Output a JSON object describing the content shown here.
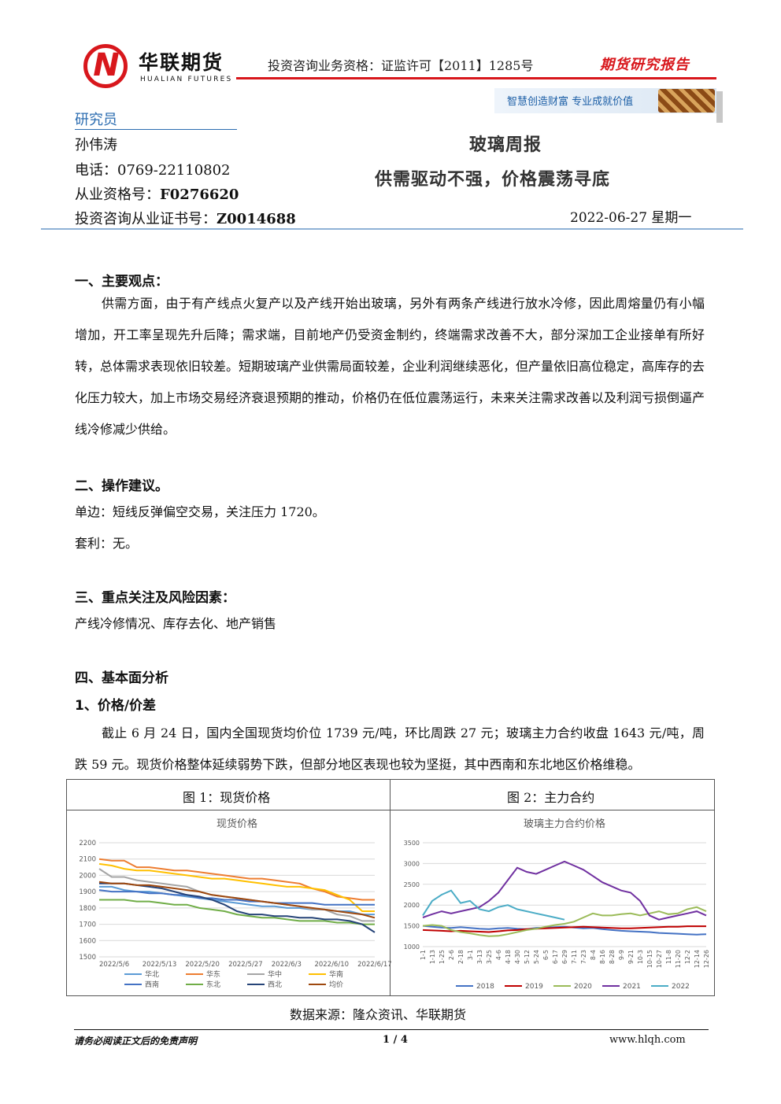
{
  "header": {
    "logo_cn": "华联期货",
    "logo_en": "HUALIAN FUTURES",
    "qualification": "投资咨询业务资格：证监许可【2011】1285号",
    "report_type": "期货研究报告",
    "slogan": "智慧创造财富  专业成就价值",
    "brand_color": "#d8171c"
  },
  "researcher": {
    "section_title": "研究员",
    "name": "孙伟涛",
    "phone_label": "电话：",
    "phone": "0769-22110802",
    "license_label": "从业资格号：",
    "license": "F0276620",
    "advisory_label": "投资咨询从业证书号：",
    "advisory": "Z0014688"
  },
  "title": {
    "main": "玻璃周报",
    "sub": "供需驱动不强，价格震荡寻底",
    "date": "2022-06-27  星期一"
  },
  "sections": {
    "s1_title": "一、主要观点：",
    "s1_body": "供需方面，由于有产线点火复产以及产线开始出玻璃，另外有两条产线进行放水冷修，因此周熔量仍有小幅增加，开工率呈现先升后降；需求端，目前地产仍受资金制约，终端需求改善不大，部分深加工企业接单有所好转，总体需求表现依旧较差。短期玻璃产业供需局面较差，企业利润继续恶化，但产量依旧高位稳定，高库存的去化压力较大，加上市场交易经济衰退预期的推动，价格仍在低位震荡运行，未来关注需求改善以及利润亏损倒逼产线冷修减少供给。",
    "s2_title": "二、操作建议。",
    "s2_line1": "单边：短线反弹偏空交易，关注压力 1720。",
    "s2_line2": "套利：无。",
    "s3_title": "三、重点关注及风险因素：",
    "s3_body": "产线冷修情况、库存去化、地产销售",
    "s4_title": "四、基本面分析",
    "s4_sub": "1、价格/价差",
    "s4_body": "截止 6 月 24 日，国内全国现货均价位 1739 元/吨，环比周跌 27 元；玻璃主力合约收盘 1643 元/吨，周跌 59 元。现货价格整体延续弱势下跌，但部分地区表现也较为坚挺，其中西南和东北地区价格维稳。"
  },
  "figures": {
    "fig1_caption": "图 1：现货价格",
    "fig2_caption": "图 2：主力合约",
    "source": "数据来源：隆众资讯、华联期货"
  },
  "chart_data": [
    {
      "type": "line",
      "title": "现货价格",
      "x_ticks": [
        "2022/5/6",
        "2022/5/13",
        "2022/5/20",
        "2022/5/27",
        "2022/6/3",
        "2022/6/10",
        "2022/6/17"
      ],
      "y_ticks": [
        1500,
        1600,
        1700,
        1800,
        1900,
        2000,
        2100,
        2200
      ],
      "ylim": [
        1500,
        2200
      ],
      "legend_position": "bottom",
      "series": [
        {
          "name": "华北",
          "color": "#5b9bd5",
          "values": [
            1930,
            1930,
            1910,
            1900,
            1900,
            1890,
            1880,
            1870,
            1860,
            1850,
            1840,
            1830,
            1820,
            1810,
            1810,
            1800,
            1800,
            1790,
            1790,
            1780,
            1780,
            1760,
            1760
          ]
        },
        {
          "name": "华东",
          "color": "#ed7d31",
          "values": [
            2100,
            2090,
            2090,
            2050,
            2050,
            2040,
            2030,
            2030,
            2020,
            2010,
            2000,
            1990,
            1980,
            1980,
            1970,
            1960,
            1950,
            1920,
            1900,
            1870,
            1860,
            1850,
            1850
          ]
        },
        {
          "name": "华中",
          "color": "#a5a5a5",
          "values": [
            2040,
            1990,
            1990,
            1970,
            1960,
            1950,
            1940,
            1930,
            1900,
            1880,
            1870,
            1860,
            1850,
            1840,
            1830,
            1820,
            1810,
            1790,
            1790,
            1760,
            1750,
            1720,
            1720
          ]
        },
        {
          "name": "华南",
          "color": "#ffc000",
          "values": [
            2070,
            2060,
            2040,
            2030,
            2030,
            2020,
            2010,
            2000,
            1990,
            1980,
            1980,
            1970,
            1960,
            1950,
            1940,
            1930,
            1930,
            1920,
            1910,
            1880,
            1850,
            1780,
            1780
          ]
        },
        {
          "name": "西南",
          "color": "#4472c4",
          "values": [
            1910,
            1900,
            1900,
            1900,
            1890,
            1890,
            1880,
            1880,
            1860,
            1860,
            1850,
            1850,
            1840,
            1840,
            1830,
            1830,
            1830,
            1830,
            1820,
            1820,
            1820,
            1820,
            1820
          ]
        },
        {
          "name": "东北",
          "color": "#70ad47",
          "values": [
            1850,
            1850,
            1850,
            1840,
            1840,
            1830,
            1820,
            1820,
            1800,
            1790,
            1780,
            1760,
            1750,
            1740,
            1740,
            1730,
            1720,
            1720,
            1720,
            1710,
            1710,
            1700,
            1700
          ]
        },
        {
          "name": "西北",
          "color": "#264478",
          "values": [
            1950,
            1950,
            1950,
            1940,
            1930,
            1920,
            1900,
            1880,
            1870,
            1850,
            1820,
            1780,
            1760,
            1760,
            1750,
            1750,
            1740,
            1740,
            1730,
            1730,
            1720,
            1700,
            1650
          ]
        },
        {
          "name": "均价",
          "color": "#9e480e",
          "values": [
            1960,
            1950,
            1950,
            1940,
            1940,
            1930,
            1920,
            1910,
            1900,
            1880,
            1870,
            1860,
            1850,
            1840,
            1830,
            1820,
            1810,
            1800,
            1790,
            1780,
            1770,
            1760,
            1740
          ]
        }
      ]
    },
    {
      "type": "line",
      "title": "玻璃主力合约价格",
      "x_ticks": [
        "1-1",
        "1-13",
        "1-25",
        "2-6",
        "2-18",
        "3-1",
        "3-13",
        "3-25",
        "4-6",
        "4-18",
        "4-30",
        "5-12",
        "5-24",
        "6-5",
        "6-17",
        "6-29",
        "7-11",
        "7-23",
        "8-4",
        "8-16",
        "8-28",
        "9-9",
        "9-21",
        "10-3",
        "10-15",
        "10-27",
        "11-8",
        "11-20",
        "12-2",
        "12-14",
        "12-26"
      ],
      "y_ticks": [
        1000,
        1500,
        2000,
        2500,
        3000,
        3500
      ],
      "ylim": [
        1000,
        3500
      ],
      "legend_position": "bottom",
      "series": [
        {
          "name": "2018",
          "color": "#4472c4",
          "values": [
            1500,
            1480,
            1460,
            1450,
            1470,
            1450,
            1430,
            1420,
            1440,
            1450,
            1430,
            1420,
            1450,
            1460,
            1470,
            1480,
            1460,
            1440,
            1450,
            1420,
            1400,
            1380,
            1370,
            1360,
            1350,
            1330,
            1320,
            1310,
            1300,
            1290,
            1300
          ]
        },
        {
          "name": "2019",
          "color": "#c00000",
          "values": [
            1400,
            1390,
            1380,
            1370,
            1380,
            1370,
            1360,
            1350,
            1370,
            1390,
            1400,
            1420,
            1430,
            1440,
            1450,
            1460,
            1470,
            1480,
            1470,
            1460,
            1450,
            1440,
            1440,
            1450,
            1460,
            1470,
            1480,
            1480,
            1490,
            1490,
            1490
          ]
        },
        {
          "name": "2020",
          "color": "#9bbb59",
          "values": [
            1500,
            1520,
            1500,
            1400,
            1350,
            1320,
            1280,
            1250,
            1260,
            1300,
            1350,
            1400,
            1430,
            1480,
            1520,
            1550,
            1600,
            1700,
            1800,
            1750,
            1750,
            1780,
            1800,
            1750,
            1800,
            1850,
            1780,
            1800,
            1900,
            1950,
            1850
          ]
        },
        {
          "name": "2021",
          "color": "#7030a0",
          "values": [
            1700,
            1780,
            1850,
            1800,
            1850,
            1900,
            1950,
            2100,
            2300,
            2600,
            2900,
            2800,
            2750,
            2850,
            2950,
            3050,
            2950,
            2850,
            2700,
            2550,
            2450,
            2350,
            2300,
            2100,
            1750,
            1650,
            1700,
            1750,
            1800,
            1850,
            1750
          ]
        },
        {
          "name": "2022",
          "color": "#4bacc6",
          "values": [
            1750,
            2100,
            2250,
            2350,
            2050,
            2100,
            1900,
            1850,
            1950,
            2000,
            1900,
            1850,
            1800,
            1750,
            1700,
            1650
          ]
        }
      ]
    }
  ],
  "footer": {
    "disclaimer": "请务必阅读正文后的免责声明",
    "page": "1 / 4",
    "site": "www.hlqh.com"
  }
}
